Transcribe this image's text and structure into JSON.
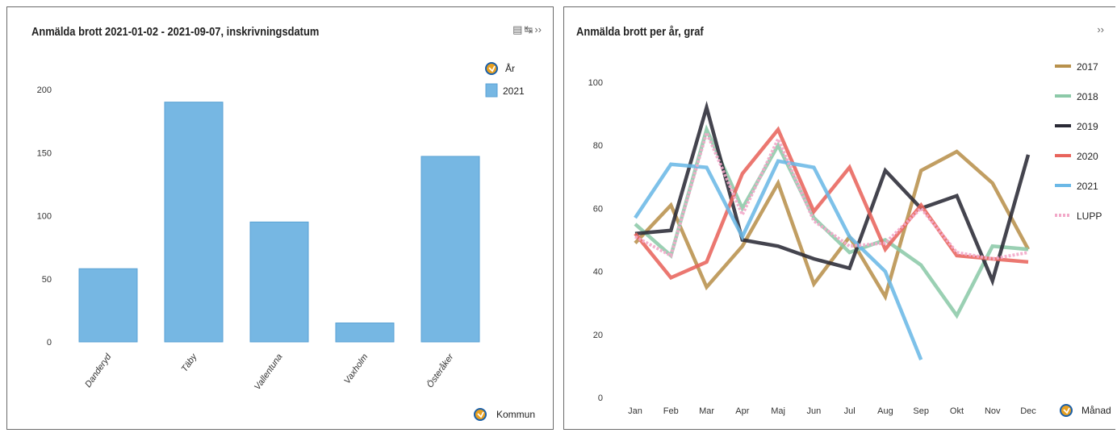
{
  "left_panel": {
    "title": "Anmälda brott 2021-01-02 - 2021-09-07, inskrivningsdatum",
    "icons": [
      "print-icon",
      "export-icon",
      "expand-icon"
    ],
    "legend_header": "År",
    "x_axis_name": "Kommun"
  },
  "right_panel": {
    "title": "Anmälda brott per år, graf",
    "icons": [
      "expand-icon"
    ],
    "x_axis_name": "Månad"
  },
  "chart_data": [
    {
      "type": "bar",
      "title": "Anmälda brott 2021-01-02 - 2021-09-07, inskrivningsdatum",
      "categories": [
        "Danderyd",
        "Täby",
        "Vallentuna",
        "Vaxholm",
        "Österåker"
      ],
      "series": [
        {
          "name": "2021",
          "values": [
            58,
            190,
            95,
            15,
            147
          ],
          "color": "#76b7e3"
        }
      ],
      "yticks": [
        0,
        50,
        100,
        150,
        200
      ],
      "ylim": [
        0,
        210
      ],
      "legend": "top-right",
      "grid": false
    },
    {
      "type": "line",
      "title": "Anmälda brott per år, graf",
      "categories": [
        "Jan",
        "Feb",
        "Mar",
        "Apr",
        "Maj",
        "Jun",
        "Jul",
        "Aug",
        "Sep",
        "Okt",
        "Nov",
        "Dec"
      ],
      "series": [
        {
          "name": "2017",
          "color": "#b8914c",
          "values": [
            49,
            61,
            35,
            48,
            68,
            36,
            51,
            32,
            72,
            78,
            68,
            47
          ]
        },
        {
          "name": "2018",
          "color": "#8cc9a8",
          "values": [
            55,
            45,
            85,
            60,
            80,
            57,
            46,
            50,
            42,
            26,
            48,
            47
          ]
        },
        {
          "name": "2019",
          "color": "#2a2a35",
          "values": [
            52,
            53,
            92,
            50,
            48,
            44,
            41,
            72,
            60,
            64,
            37,
            77
          ]
        },
        {
          "name": "2020",
          "color": "#e8645c",
          "values": [
            52,
            38,
            43,
            71,
            85,
            59,
            73,
            47,
            61,
            45,
            44,
            43
          ]
        },
        {
          "name": "2021",
          "color": "#6bb8e6",
          "values": [
            57,
            74,
            73,
            51,
            75,
            73,
            51,
            40,
            12,
            null,
            null,
            null
          ]
        },
        {
          "name": "LUPP",
          "color": "#f2a9c9",
          "dashed": true,
          "values": [
            51,
            45,
            84,
            58,
            82,
            56,
            48,
            49,
            60,
            46,
            44,
            46
          ]
        }
      ],
      "yticks": [
        0,
        20,
        40,
        60,
        80,
        100
      ],
      "ylim": [
        0,
        105
      ],
      "legend": "right",
      "grid": false
    }
  ]
}
